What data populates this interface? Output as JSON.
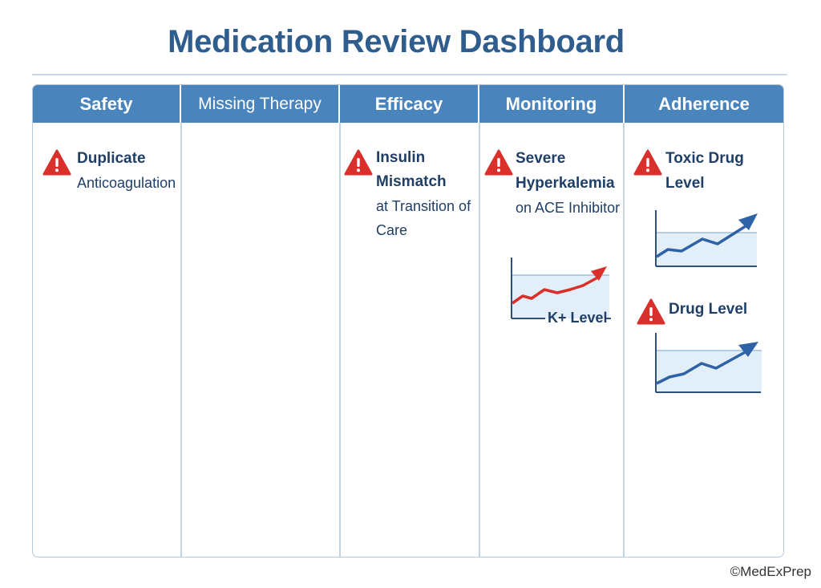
{
  "title": "Medication Review Dashboard",
  "columns": [
    {
      "label": "Safety"
    },
    {
      "label": "Missing Therapy"
    },
    {
      "label": "Efficacy"
    },
    {
      "label": "Monitoring"
    },
    {
      "label": "Adherence"
    }
  ],
  "cards": {
    "safety": {
      "line1": "Duplicate",
      "line2": "Anticoagulation"
    },
    "efficacy": {
      "line1": "Insulin",
      "line2": "Mismatch",
      "line3": "at Transition of",
      "line4": "Care"
    },
    "monitoring": {
      "line1": "Severe",
      "line2": "Hyperkalemia",
      "line3": "on ACE Inhibitor",
      "chart_label": "K+ Level"
    },
    "adherence_1": {
      "line1": "Toxic Drug",
      "line2": "Level"
    },
    "adherence_2": {
      "line1": "Drug Level"
    }
  },
  "colors": {
    "header": "#4a84bd",
    "alert": "#d9302c",
    "trend_red": "#d9302c",
    "trend_blue": "#2e62a6"
  },
  "icons": [
    "warning-icon",
    "trend-up-arrow-icon"
  ],
  "copyright": "©MedExPrep"
}
